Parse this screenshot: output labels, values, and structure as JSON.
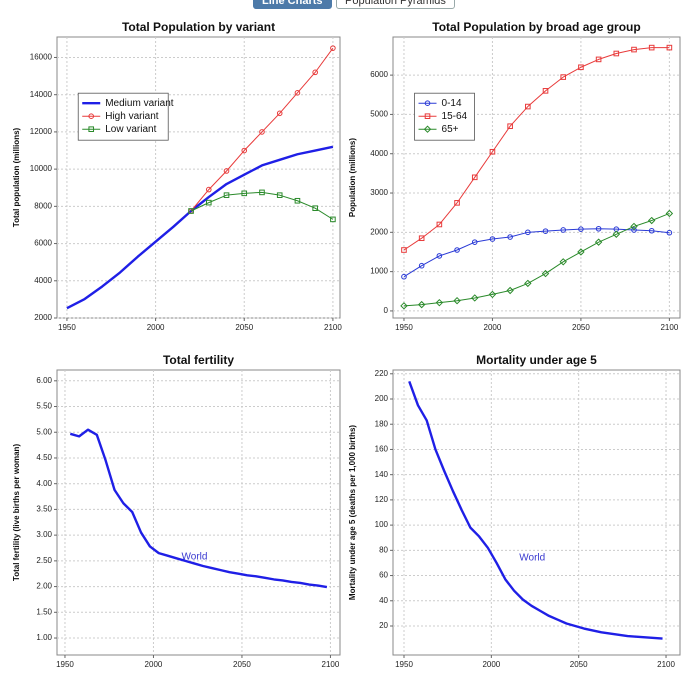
{
  "tabs": [
    "Line Charts",
    "Population Pyramids"
  ],
  "chart_data": [
    {
      "type": "line",
      "title": "Total Population by variant",
      "ylabel": "Total population (millions)",
      "x": [
        1950,
        1960,
        1970,
        1980,
        1990,
        2000,
        2010,
        2020,
        2030,
        2040,
        2050,
        2060,
        2070,
        2080,
        2090,
        2100
      ],
      "series": [
        {
          "name": "Medium variant",
          "color": "#1f1fe6",
          "marker": null,
          "values": [
            2525,
            3020,
            3700,
            4450,
            5300,
            6100,
            6900,
            7750,
            8500,
            9200,
            9700,
            10200,
            10500,
            10800,
            11000,
            11200
          ]
        },
        {
          "name": "High variant",
          "color": "#e83a3a",
          "marker": "circle",
          "values": [
            null,
            null,
            null,
            null,
            null,
            null,
            null,
            7750,
            8900,
            9900,
            11000,
            12000,
            13000,
            14100,
            15200,
            16500
          ]
        },
        {
          "name": "Low variant",
          "color": "#2a8a2a",
          "marker": "square",
          "values": [
            null,
            null,
            null,
            null,
            null,
            null,
            null,
            7750,
            8200,
            8600,
            8700,
            8750,
            8600,
            8300,
            7900,
            7300
          ]
        }
      ],
      "xlim": [
        1944.4,
        2104
      ],
      "ylim": [
        2000,
        17100
      ],
      "xticks": [
        1950,
        2000,
        2050,
        2100
      ],
      "yticks": [
        2000,
        4000,
        6000,
        8000,
        10000,
        12000,
        14000,
        16000
      ],
      "grid": true,
      "legend": "upper left"
    },
    {
      "type": "line",
      "title": "Total Population by broad age group",
      "ylabel": "Population (millions)",
      "x": [
        1950,
        1960,
        1970,
        1980,
        1990,
        2000,
        2010,
        2020,
        2030,
        2040,
        2050,
        2060,
        2070,
        2080,
        2090,
        2100
      ],
      "series": [
        {
          "name": "0-14",
          "color": "#2a3ad6",
          "marker": "circle",
          "values": [
            870,
            1150,
            1400,
            1550,
            1750,
            1830,
            1880,
            2000,
            2030,
            2060,
            2080,
            2090,
            2080,
            2060,
            2040,
            1990
          ]
        },
        {
          "name": "15-64",
          "color": "#e83a3a",
          "marker": "square",
          "values": [
            1550,
            1850,
            2200,
            2750,
            3400,
            4050,
            4700,
            5200,
            5600,
            5950,
            6200,
            6400,
            6550,
            6650,
            6700,
            6700
          ]
        },
        {
          "name": "65+",
          "color": "#2a8a2a",
          "marker": "diamond",
          "values": [
            130,
            160,
            210,
            260,
            330,
            420,
            520,
            700,
            950,
            1250,
            1500,
            1750,
            1950,
            2150,
            2300,
            2480
          ]
        }
      ],
      "xlim": [
        1943.8,
        2106
      ],
      "ylim": [
        -180,
        6970
      ],
      "xticks": [
        1950,
        2000,
        2050,
        2100
      ],
      "yticks": [
        0,
        1000,
        2000,
        3000,
        4000,
        5000,
        6000
      ],
      "grid": true,
      "legend": "upper left"
    },
    {
      "type": "line",
      "title": "Total fertility",
      "ylabel": "Total fertility (live births per woman)",
      "x": [
        1953,
        1958,
        1963,
        1968,
        1973,
        1978,
        1983,
        1988,
        1993,
        1998,
        2003,
        2008,
        2013,
        2018,
        2023,
        2028,
        2033,
        2038,
        2043,
        2048,
        2053,
        2058,
        2063,
        2068,
        2073,
        2078,
        2083,
        2088,
        2093,
        2098
      ],
      "series": [
        {
          "name": "World",
          "color": "#1f1fe6",
          "marker": null,
          "values": [
            4.97,
            4.92,
            5.05,
            4.95,
            4.45,
            3.88,
            3.62,
            3.45,
            3.05,
            2.78,
            2.65,
            2.6,
            2.55,
            2.5,
            2.45,
            2.4,
            2.36,
            2.32,
            2.28,
            2.25,
            2.22,
            2.2,
            2.17,
            2.14,
            2.12,
            2.09,
            2.07,
            2.04,
            2.02,
            1.99
          ]
        }
      ],
      "xlim": [
        1945.5,
        2105.4
      ],
      "ylim": [
        0.67,
        6.21
      ],
      "xticks": [
        1950,
        2000,
        2050,
        2100
      ],
      "yticks": [
        {
          "value": 1,
          "label": "1.00"
        },
        {
          "value": 1.5,
          "label": "1.50"
        },
        {
          "value": 2,
          "label": "2.00"
        },
        {
          "value": 2.5,
          "label": "2.50"
        },
        {
          "value": 3,
          "label": "3.00"
        },
        {
          "value": 3.5,
          "label": "3.50"
        },
        {
          "value": 4,
          "label": "4.00"
        },
        {
          "value": 4.5,
          "label": "4.50"
        },
        {
          "value": 5,
          "label": "5.00"
        },
        {
          "value": 5.5,
          "label": "5.50"
        },
        {
          "value": 6,
          "label": "6.00"
        }
      ],
      "grid": true,
      "annotation": "World"
    },
    {
      "type": "line",
      "title": "Mortality under age 5",
      "ylabel": "Mortality under age 5 (deaths per 1,000 births)",
      "x": [
        1953,
        1958,
        1963,
        1968,
        1973,
        1978,
        1983,
        1988,
        1993,
        1998,
        2003,
        2008,
        2013,
        2018,
        2023,
        2028,
        2033,
        2038,
        2043,
        2048,
        2053,
        2058,
        2063,
        2068,
        2073,
        2078,
        2083,
        2088,
        2093,
        2098
      ],
      "series": [
        {
          "name": "World",
          "color": "#1f1fe6",
          "marker": null,
          "values": [
            214,
            195,
            183,
            160,
            143,
            127,
            112,
            98,
            91,
            82,
            70,
            57,
            48,
            41,
            36,
            32,
            28,
            25,
            22,
            20,
            18,
            16.5,
            15,
            14,
            13,
            12,
            11.5,
            11,
            10.5,
            10
          ]
        }
      ],
      "xlim": [
        1943.7,
        2108
      ],
      "ylim": [
        -3,
        223
      ],
      "xticks": [
        1950,
        2000,
        2050,
        2100
      ],
      "yticks": [
        20,
        40,
        60,
        80,
        100,
        120,
        140,
        160,
        180,
        200,
        220
      ],
      "grid": true,
      "annotation": "World"
    }
  ]
}
